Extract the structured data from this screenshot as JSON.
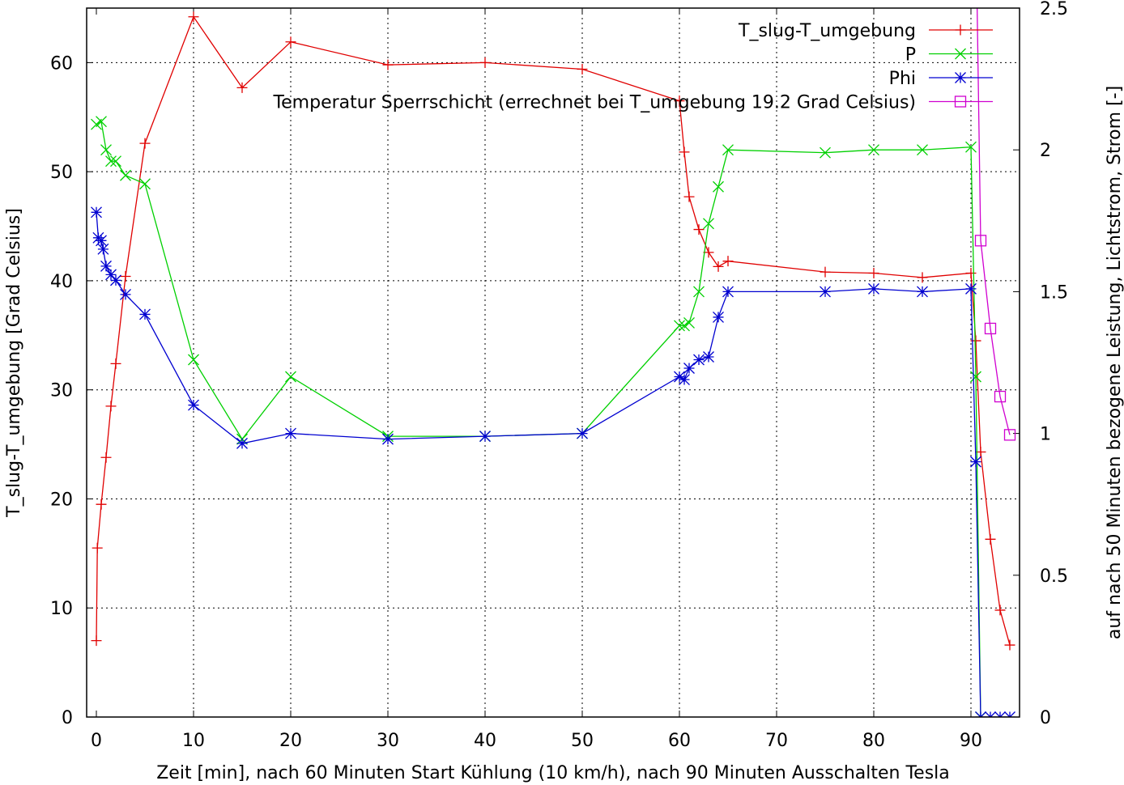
{
  "chart_data": {
    "type": "line",
    "xlabel": "Zeit [min], nach 60 Minuten Start Kühlung (10 km/h), nach 90 Minuten Ausschalten Tesla",
    "ylabel": "T_slug-T_umgebung [Grad Celsius]",
    "y2label": "auf nach 50 Minuten bezogene Leistung, Lichtstrom, Strom [-]",
    "xlim": [
      -1,
      95
    ],
    "ylim": [
      0,
      65
    ],
    "y2lim": [
      0,
      2.5
    ],
    "grid": true,
    "legend_position": "top-right",
    "x_ticks": [
      0,
      10,
      20,
      30,
      40,
      50,
      60,
      70,
      80,
      90
    ],
    "y_ticks": [
      0,
      10,
      20,
      30,
      40,
      50,
      60
    ],
    "y2_ticks": [
      0,
      0.5,
      1,
      1.5,
      2,
      2.5
    ],
    "x_tick_labels": [
      "0",
      "10",
      "20",
      "30",
      "40",
      "50",
      "60",
      "70",
      "80",
      "90"
    ],
    "y_tick_labels": [
      "0",
      "10",
      "20",
      "30",
      "40",
      "50",
      "60"
    ],
    "y2_tick_labels": [
      "0",
      "0.5",
      "1",
      "1.5",
      "2",
      "2.5"
    ],
    "series": [
      {
        "name": "T_slug-T_umgebung",
        "axis": "y1",
        "marker": "plus",
        "color": "#e00000",
        "points": [
          [
            0,
            7
          ],
          [
            0.1,
            15.5
          ],
          [
            0.5,
            19.5
          ],
          [
            1,
            23.8
          ],
          [
            1.5,
            28.5
          ],
          [
            2,
            32.4
          ],
          [
            3,
            40.4
          ],
          [
            5,
            52.6
          ],
          [
            10,
            64.2
          ],
          [
            15,
            57.7
          ],
          [
            20,
            61.9
          ],
          [
            30,
            59.8
          ],
          [
            40,
            60
          ],
          [
            50,
            59.4
          ],
          [
            60,
            56.5
          ],
          [
            60.5,
            51.8
          ],
          [
            61,
            47.7
          ],
          [
            62,
            44.7
          ],
          [
            63,
            42.6
          ],
          [
            64,
            41.3
          ],
          [
            65,
            41.8
          ],
          [
            75,
            40.8
          ],
          [
            80,
            40.7
          ],
          [
            85,
            40.3
          ],
          [
            90,
            40.7
          ],
          [
            90.5,
            34.5
          ],
          [
            91,
            24.3
          ],
          [
            92,
            16.3
          ],
          [
            93,
            9.8
          ],
          [
            94,
            6.6
          ]
        ]
      },
      {
        "name": "P",
        "axis": "y2",
        "marker": "cross",
        "color": "#00d000",
        "points": [
          [
            0,
            2.09
          ],
          [
            0.5,
            2.1
          ],
          [
            1,
            2.0
          ],
          [
            1.5,
            1.96
          ],
          [
            2,
            1.96
          ],
          [
            3,
            1.91
          ],
          [
            5,
            1.88
          ],
          [
            10,
            1.26
          ],
          [
            15,
            0.98
          ],
          [
            20,
            1.2
          ],
          [
            30,
            0.99
          ],
          [
            40,
            0.99
          ],
          [
            50,
            1.0
          ],
          [
            60,
            1.38
          ],
          [
            60.5,
            1.38
          ],
          [
            61,
            1.39
          ],
          [
            62,
            1.5
          ],
          [
            63,
            1.74
          ],
          [
            64,
            1.87
          ],
          [
            65,
            2.0
          ],
          [
            75,
            1.99
          ],
          [
            80,
            2.0
          ],
          [
            85,
            2.0
          ],
          [
            90,
            2.01
          ],
          [
            90.5,
            1.2
          ],
          [
            91,
            0
          ]
        ]
      },
      {
        "name": "Phi",
        "axis": "y2",
        "marker": "star",
        "color": "#0000d0",
        "points": [
          [
            0,
            1.78
          ],
          [
            0.2,
            1.69
          ],
          [
            0.5,
            1.68
          ],
          [
            0.7,
            1.65
          ],
          [
            1,
            1.59
          ],
          [
            1.5,
            1.56
          ],
          [
            2,
            1.54
          ],
          [
            3,
            1.49
          ],
          [
            5,
            1.42
          ],
          [
            10,
            1.1
          ],
          [
            15,
            0.965
          ],
          [
            20,
            1.0
          ],
          [
            30,
            0.98
          ],
          [
            40,
            0.99
          ],
          [
            50,
            1.0
          ],
          [
            60,
            1.2
          ],
          [
            60.5,
            1.19
          ],
          [
            61,
            1.23
          ],
          [
            62,
            1.26
          ],
          [
            63,
            1.27
          ],
          [
            64,
            1.41
          ],
          [
            65,
            1.5
          ],
          [
            75,
            1.5
          ],
          [
            80,
            1.51
          ],
          [
            85,
            1.5
          ],
          [
            90,
            1.51
          ],
          [
            90.5,
            0.9
          ],
          [
            91,
            0
          ],
          [
            92,
            0
          ],
          [
            93,
            0
          ],
          [
            94,
            0
          ]
        ]
      },
      {
        "name": "Temperatur Sperrschicht (errechnet bei T_umgebung 19.2 Grad Celsius)",
        "axis": "y2",
        "marker": "square",
        "color": "#d000d0",
        "points": [
          [
            90.2,
            3.5
          ],
          [
            91,
            1.68
          ],
          [
            92,
            1.37
          ],
          [
            93,
            1.13
          ],
          [
            94,
            0.995
          ]
        ]
      }
    ]
  }
}
